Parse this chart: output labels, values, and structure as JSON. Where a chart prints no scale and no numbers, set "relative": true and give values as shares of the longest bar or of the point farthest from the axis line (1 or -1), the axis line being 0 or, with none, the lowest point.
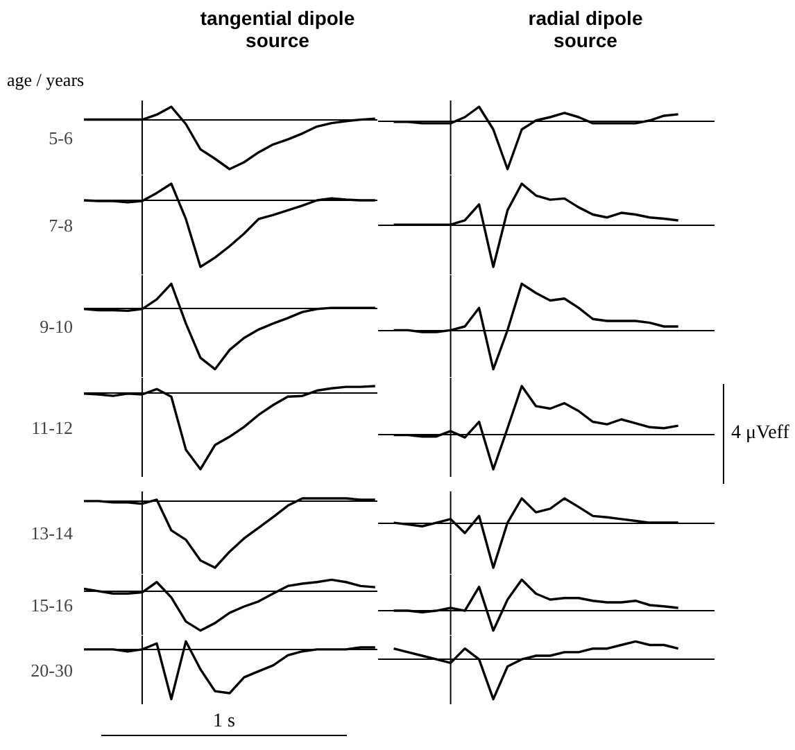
{
  "chart_data": [
    {
      "type": "line",
      "relative": true,
      "title": "tangential dipole source",
      "ylabel": "5-6",
      "annotations": [
        "age / years"
      ],
      "categories": [
        null,
        null,
        null,
        null,
        null,
        null,
        null,
        null,
        null,
        null,
        null,
        null,
        null,
        null,
        null,
        null,
        null,
        null,
        null,
        null,
        null
      ],
      "series": [
        {
          "color": "#000000",
          "values": [
            0,
            0,
            0,
            0,
            0,
            0.1,
            0.26,
            -0.09,
            -0.6,
            -0.79,
            -1,
            -0.86,
            -0.66,
            -0.5,
            -0.4,
            -0.28,
            -0.14,
            -0.07,
            -0.03,
            0,
            0.02
          ]
        }
      ]
    },
    {
      "type": "line",
      "relative": true,
      "title": "radial dipole source",
      "categories": [
        null,
        null,
        null,
        null,
        null,
        null,
        null,
        null,
        null,
        null,
        null,
        null,
        null,
        null,
        null,
        null,
        null,
        null,
        null,
        null,
        null
      ],
      "series": [
        {
          "color": "#000000",
          "values": [
            0,
            0,
            -0.03,
            -0.03,
            -0.03,
            0.1,
            0.32,
            -0.16,
            -1,
            -0.16,
            0.03,
            0.1,
            0.19,
            0.1,
            -0.03,
            -0.03,
            -0.03,
            -0.03,
            0.03,
            0.13,
            0.16
          ]
        }
      ]
    },
    {
      "type": "line",
      "relative": true,
      "ylabel": "7-8",
      "categories": [
        null,
        null,
        null,
        null,
        null,
        null,
        null,
        null,
        null,
        null,
        null,
        null,
        null,
        null,
        null,
        null,
        null,
        null,
        null,
        null,
        null
      ],
      "series": [
        {
          "color": "#000000",
          "values": [
            0,
            -0.01,
            -0.01,
            -0.03,
            -0.01,
            0.11,
            0.25,
            -0.28,
            -1,
            -0.86,
            -0.69,
            -0.5,
            -0.28,
            -0.22,
            -0.15,
            -0.08,
            0,
            0.03,
            0.01,
            0,
            0
          ]
        }
      ]
    },
    {
      "type": "line",
      "relative": true,
      "categories": [
        null,
        null,
        null,
        null,
        null,
        null,
        null,
        null,
        null,
        null,
        null,
        null,
        null,
        null,
        null,
        null,
        null,
        null,
        null,
        null,
        null
      ],
      "series": [
        {
          "color": "#000000",
          "values": [
            0,
            0,
            0,
            0,
            0,
            0.1,
            0.48,
            -1,
            0.34,
            0.97,
            0.69,
            0.59,
            0.62,
            0.41,
            0.24,
            0.17,
            0.28,
            0.24,
            0.17,
            0.14,
            0.1
          ]
        }
      ]
    },
    {
      "type": "line",
      "relative": true,
      "ylabel": "9-10",
      "categories": [
        null,
        null,
        null,
        null,
        null,
        null,
        null,
        null,
        null,
        null,
        null,
        null,
        null,
        null,
        null,
        null,
        null,
        null,
        null,
        null,
        null
      ],
      "series": [
        {
          "color": "#000000",
          "values": [
            0,
            -0.02,
            -0.02,
            -0.03,
            0,
            0.16,
            0.42,
            -0.24,
            -0.81,
            -1,
            -0.68,
            -0.48,
            -0.34,
            -0.24,
            -0.15,
            -0.05,
            0,
            0.02,
            0.02,
            0.02,
            0.02
          ]
        }
      ]
    },
    {
      "type": "line",
      "relative": true,
      "categories": [
        null,
        null,
        null,
        null,
        null,
        null,
        null,
        null,
        null,
        null,
        null,
        null,
        null,
        null,
        null,
        null,
        null,
        null,
        null,
        null,
        null
      ],
      "series": [
        {
          "color": "#000000",
          "values": [
            0,
            0,
            -0.04,
            -0.04,
            0,
            0.08,
            0.48,
            -0.84,
            0,
            1,
            0.8,
            0.64,
            0.68,
            0.48,
            0.24,
            0.2,
            0.2,
            0.2,
            0.16,
            0.08,
            0.08
          ]
        }
      ]
    },
    {
      "type": "line",
      "relative": true,
      "ylabel": "11-12",
      "categories": [
        null,
        null,
        null,
        null,
        null,
        null,
        null,
        null,
        null,
        null,
        null,
        null,
        null,
        null,
        null,
        null,
        null,
        null,
        null,
        null,
        null
      ],
      "series": [
        {
          "color": "#000000",
          "values": [
            0,
            -0.01,
            -0.03,
            0,
            -0.01,
            0.06,
            -0.04,
            -0.74,
            -1,
            -0.68,
            -0.57,
            -0.44,
            -0.28,
            -0.15,
            -0.04,
            -0.03,
            0.04,
            0.07,
            0.09,
            0.09,
            0.1
          ]
        }
      ]
    },
    {
      "type": "line",
      "relative": true,
      "annotations": [
        "4 μVeff"
      ],
      "categories": [
        null,
        null,
        null,
        null,
        null,
        null,
        null,
        null,
        null,
        null,
        null,
        null,
        null,
        null,
        null,
        null,
        null,
        null,
        null,
        null,
        null
      ],
      "series": [
        {
          "color": "#000000",
          "values": [
            0,
            0,
            -0.03,
            -0.03,
            0.08,
            -0.05,
            0.27,
            -0.7,
            0.14,
            1,
            0.59,
            0.54,
            0.65,
            0.49,
            0.27,
            0.22,
            0.32,
            0.24,
            0.16,
            0.14,
            0.19
          ]
        }
      ]
    },
    {
      "type": "line",
      "relative": true,
      "ylabel": "13-14",
      "categories": [
        null,
        null,
        null,
        null,
        null,
        null,
        null,
        null,
        null,
        null,
        null,
        null,
        null,
        null,
        null,
        null,
        null,
        null,
        null,
        null,
        null
      ],
      "series": [
        {
          "color": "#000000",
          "values": [
            0,
            0,
            -0.02,
            -0.02,
            -0.04,
            0.02,
            -0.44,
            -0.58,
            -0.89,
            -1,
            -0.76,
            -0.56,
            -0.4,
            -0.24,
            -0.07,
            0.04,
            0.04,
            0.04,
            0.04,
            0.02,
            0.02
          ]
        }
      ]
    },
    {
      "type": "line",
      "relative": true,
      "categories": [
        null,
        null,
        null,
        null,
        null,
        null,
        null,
        null,
        null,
        null,
        null,
        null,
        null,
        null,
        null,
        null,
        null,
        null,
        null,
        null,
        null
      ],
      "series": [
        {
          "color": "#000000",
          "values": [
            0,
            -0.04,
            -0.08,
            0,
            0.08,
            -0.23,
            0.15,
            -1,
            0,
            0.54,
            0.23,
            0.31,
            0.54,
            0.35,
            0.15,
            0.12,
            0.08,
            0.04,
            0,
            0,
            0
          ]
        }
      ]
    },
    {
      "type": "line",
      "relative": true,
      "ylabel": "15-16",
      "categories": [
        null,
        null,
        null,
        null,
        null,
        null,
        null,
        null,
        null,
        null,
        null,
        null,
        null,
        null,
        null,
        null,
        null,
        null,
        null,
        null,
        null
      ],
      "series": [
        {
          "color": "#000000",
          "values": [
            0.06,
            0,
            -0.06,
            -0.06,
            -0.03,
            0.23,
            -0.16,
            -0.77,
            -1,
            -0.81,
            -0.55,
            -0.39,
            -0.26,
            -0.06,
            0.13,
            0.19,
            0.23,
            0.29,
            0.23,
            0.13,
            0.1
          ]
        }
      ]
    },
    {
      "type": "line",
      "relative": true,
      "categories": [
        null,
        null,
        null,
        null,
        null,
        null,
        null,
        null,
        null,
        null,
        null,
        null,
        null,
        null,
        null,
        null,
        null,
        null,
        null,
        null,
        null
      ],
      "series": [
        {
          "color": "#000000",
          "values": [
            0,
            0,
            -0.05,
            0,
            0.09,
            0,
            0.77,
            -0.64,
            0.36,
            1,
            0.55,
            0.36,
            0.41,
            0.41,
            0.32,
            0.27,
            0.27,
            0.32,
            0.18,
            0.14,
            0.09
          ]
        }
      ]
    },
    {
      "type": "line",
      "relative": true,
      "ylabel": "20-30",
      "annotations": [
        "1 s"
      ],
      "categories": [
        null,
        null,
        null,
        null,
        null,
        null,
        null,
        null,
        null,
        null,
        null,
        null,
        null,
        null,
        null,
        null,
        null,
        null,
        null,
        null,
        null
      ],
      "series": [
        {
          "color": "#000000",
          "values": [
            0,
            0,
            0,
            -0.04,
            0,
            0.12,
            -1,
            0.16,
            -0.4,
            -0.84,
            -0.88,
            -0.56,
            -0.44,
            -0.32,
            -0.12,
            -0.04,
            0,
            0,
            0,
            0.04,
            0.04
          ]
        }
      ]
    },
    {
      "type": "line",
      "relative": true,
      "categories": [
        null,
        null,
        null,
        null,
        null,
        null,
        null,
        null,
        null,
        null,
        null,
        null,
        null,
        null,
        null,
        null,
        null,
        null,
        null,
        null,
        null
      ],
      "series": [
        {
          "color": "#000000",
          "values": [
            0.27,
            0.18,
            0.09,
            0,
            -0.09,
            0.27,
            0,
            -1,
            -0.18,
            0,
            0.09,
            0.09,
            0.18,
            0.18,
            0.27,
            0.27,
            0.36,
            0.45,
            0.36,
            0.36,
            0.27
          ]
        }
      ]
    }
  ]
}
